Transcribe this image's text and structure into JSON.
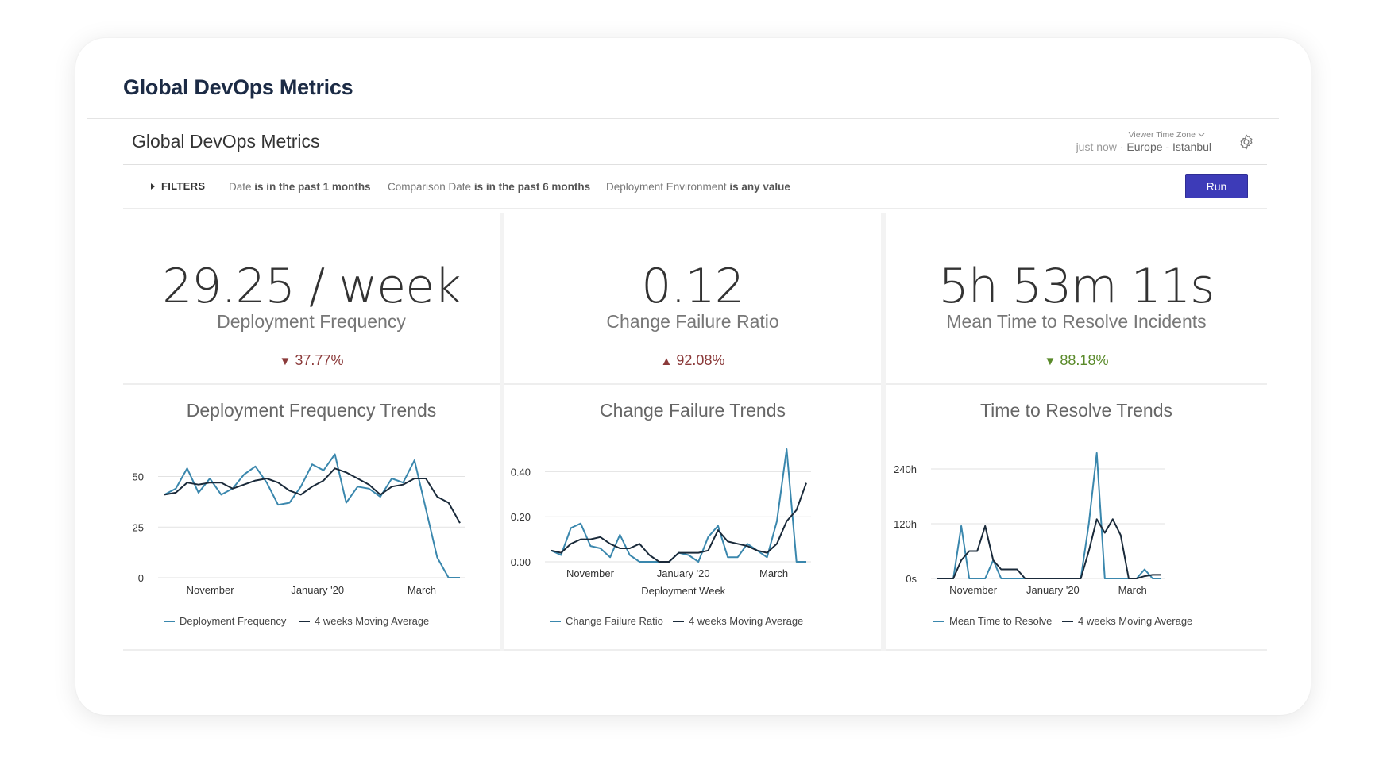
{
  "page": {
    "title": "Global DevOps Metrics"
  },
  "dashboard": {
    "title": "Global DevOps Metrics",
    "timezone_label": "Viewer Time Zone",
    "refreshed": "just now",
    "separator": "·",
    "timezone": "Europe - Istanbul",
    "settings_icon": "gear-icon"
  },
  "filters": {
    "toggle_label": "FILTERS",
    "items": [
      {
        "field": "Date",
        "condition": "is in the past 1 months"
      },
      {
        "field": "Comparison Date",
        "condition": "is in the past 6 months"
      },
      {
        "field": "Deployment Environment",
        "condition": "is any value"
      }
    ],
    "run_label": "Run"
  },
  "kpis": [
    {
      "value": "29.25 / week",
      "label": "Deployment Frequency",
      "change": "37.77%",
      "direction": "down",
      "color": "#8b3a3a"
    },
    {
      "value": "0.12",
      "label": "Change Failure Ratio",
      "change": "92.08%",
      "direction": "up",
      "color": "#8b3a3a"
    },
    {
      "value": "5h 53m 11s",
      "label": "Mean Time to Resolve Incidents",
      "change": "88.18%",
      "direction": "down",
      "color": "#5a8a2a"
    }
  ],
  "chart_data": [
    {
      "type": "line",
      "title": "Deployment Frequency Trends",
      "xlabel": "",
      "x_ticks": [
        "November",
        "January '20",
        "March"
      ],
      "y_ticks": [
        "0",
        "25",
        "50"
      ],
      "ylim": [
        0,
        60
      ],
      "series": [
        {
          "name": "Deployment Frequency",
          "color": "#3a87ad",
          "values": [
            41,
            44,
            54,
            42,
            49,
            41,
            44,
            51,
            55,
            47,
            36,
            37,
            45,
            56,
            53,
            61,
            37,
            45,
            44,
            40,
            49,
            47,
            58,
            34,
            10,
            0,
            0
          ]
        },
        {
          "name": "4 weeks Moving Average",
          "color": "#1a2a3a",
          "values": [
            41,
            42,
            47,
            46,
            47,
            47,
            44,
            46,
            48,
            49,
            47,
            43,
            41,
            45,
            48,
            54,
            52,
            49,
            46,
            41,
            45,
            46,
            49,
            49,
            40,
            37,
            27
          ]
        }
      ]
    },
    {
      "type": "line",
      "title": "Change Failure Trends",
      "xlabel": "Deployment Week",
      "x_ticks": [
        "November",
        "January '20",
        "March"
      ],
      "y_ticks": [
        "0.00",
        "0.20",
        "0.40"
      ],
      "ylim": [
        0,
        0.5
      ],
      "series": [
        {
          "name": "Change Failure Ratio",
          "color": "#3a87ad",
          "values": [
            0.05,
            0.03,
            0.15,
            0.17,
            0.07,
            0.06,
            0.02,
            0.12,
            0.03,
            0.0,
            0.0,
            0.0,
            0.0,
            0.04,
            0.03,
            0.0,
            0.11,
            0.16,
            0.02,
            0.02,
            0.08,
            0.05,
            0.02,
            0.18,
            0.5,
            0.0,
            0.0
          ]
        },
        {
          "name": "4 weeks Moving Average",
          "color": "#1a2a3a",
          "values": [
            0.05,
            0.04,
            0.08,
            0.1,
            0.1,
            0.11,
            0.08,
            0.06,
            0.06,
            0.08,
            0.03,
            0.0,
            0.0,
            0.04,
            0.04,
            0.04,
            0.05,
            0.14,
            0.09,
            0.08,
            0.07,
            0.05,
            0.04,
            0.08,
            0.18,
            0.23,
            0.35
          ]
        }
      ]
    },
    {
      "type": "line",
      "title": "Time to Resolve Trends",
      "xlabel": "",
      "x_ticks": [
        "November",
        "January '20",
        "March"
      ],
      "y_ticks": [
        "0s",
        "120h",
        "240h"
      ],
      "ylim": [
        0,
        280
      ],
      "series": [
        {
          "name": "Mean Time to Resolve",
          "color": "#3a87ad",
          "values": [
            0,
            0,
            0,
            115,
            0,
            0,
            0,
            40,
            0,
            0,
            0,
            0,
            0,
            0,
            0,
            0,
            0,
            0,
            0,
            120,
            275,
            0,
            0,
            0,
            0,
            0,
            20,
            0,
            0
          ]
        },
        {
          "name": "4 weeks Moving Average",
          "color": "#1a2a3a",
          "values": [
            0,
            0,
            0,
            40,
            60,
            60,
            115,
            40,
            20,
            20,
            20,
            0,
            0,
            0,
            0,
            0,
            0,
            0,
            0,
            60,
            130,
            100,
            130,
            95,
            0,
            0,
            5,
            8,
            8
          ]
        }
      ]
    }
  ]
}
